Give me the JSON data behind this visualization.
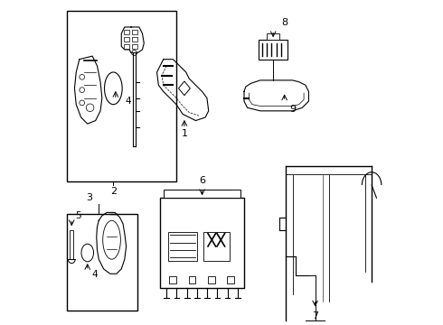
{
  "background_color": "#ffffff",
  "line_color": "#000000",
  "bracket_bx": 0.7,
  "bracket_by": 0.25,
  "bracket_bw": 0.265,
  "bracket_bh": 0.48
}
